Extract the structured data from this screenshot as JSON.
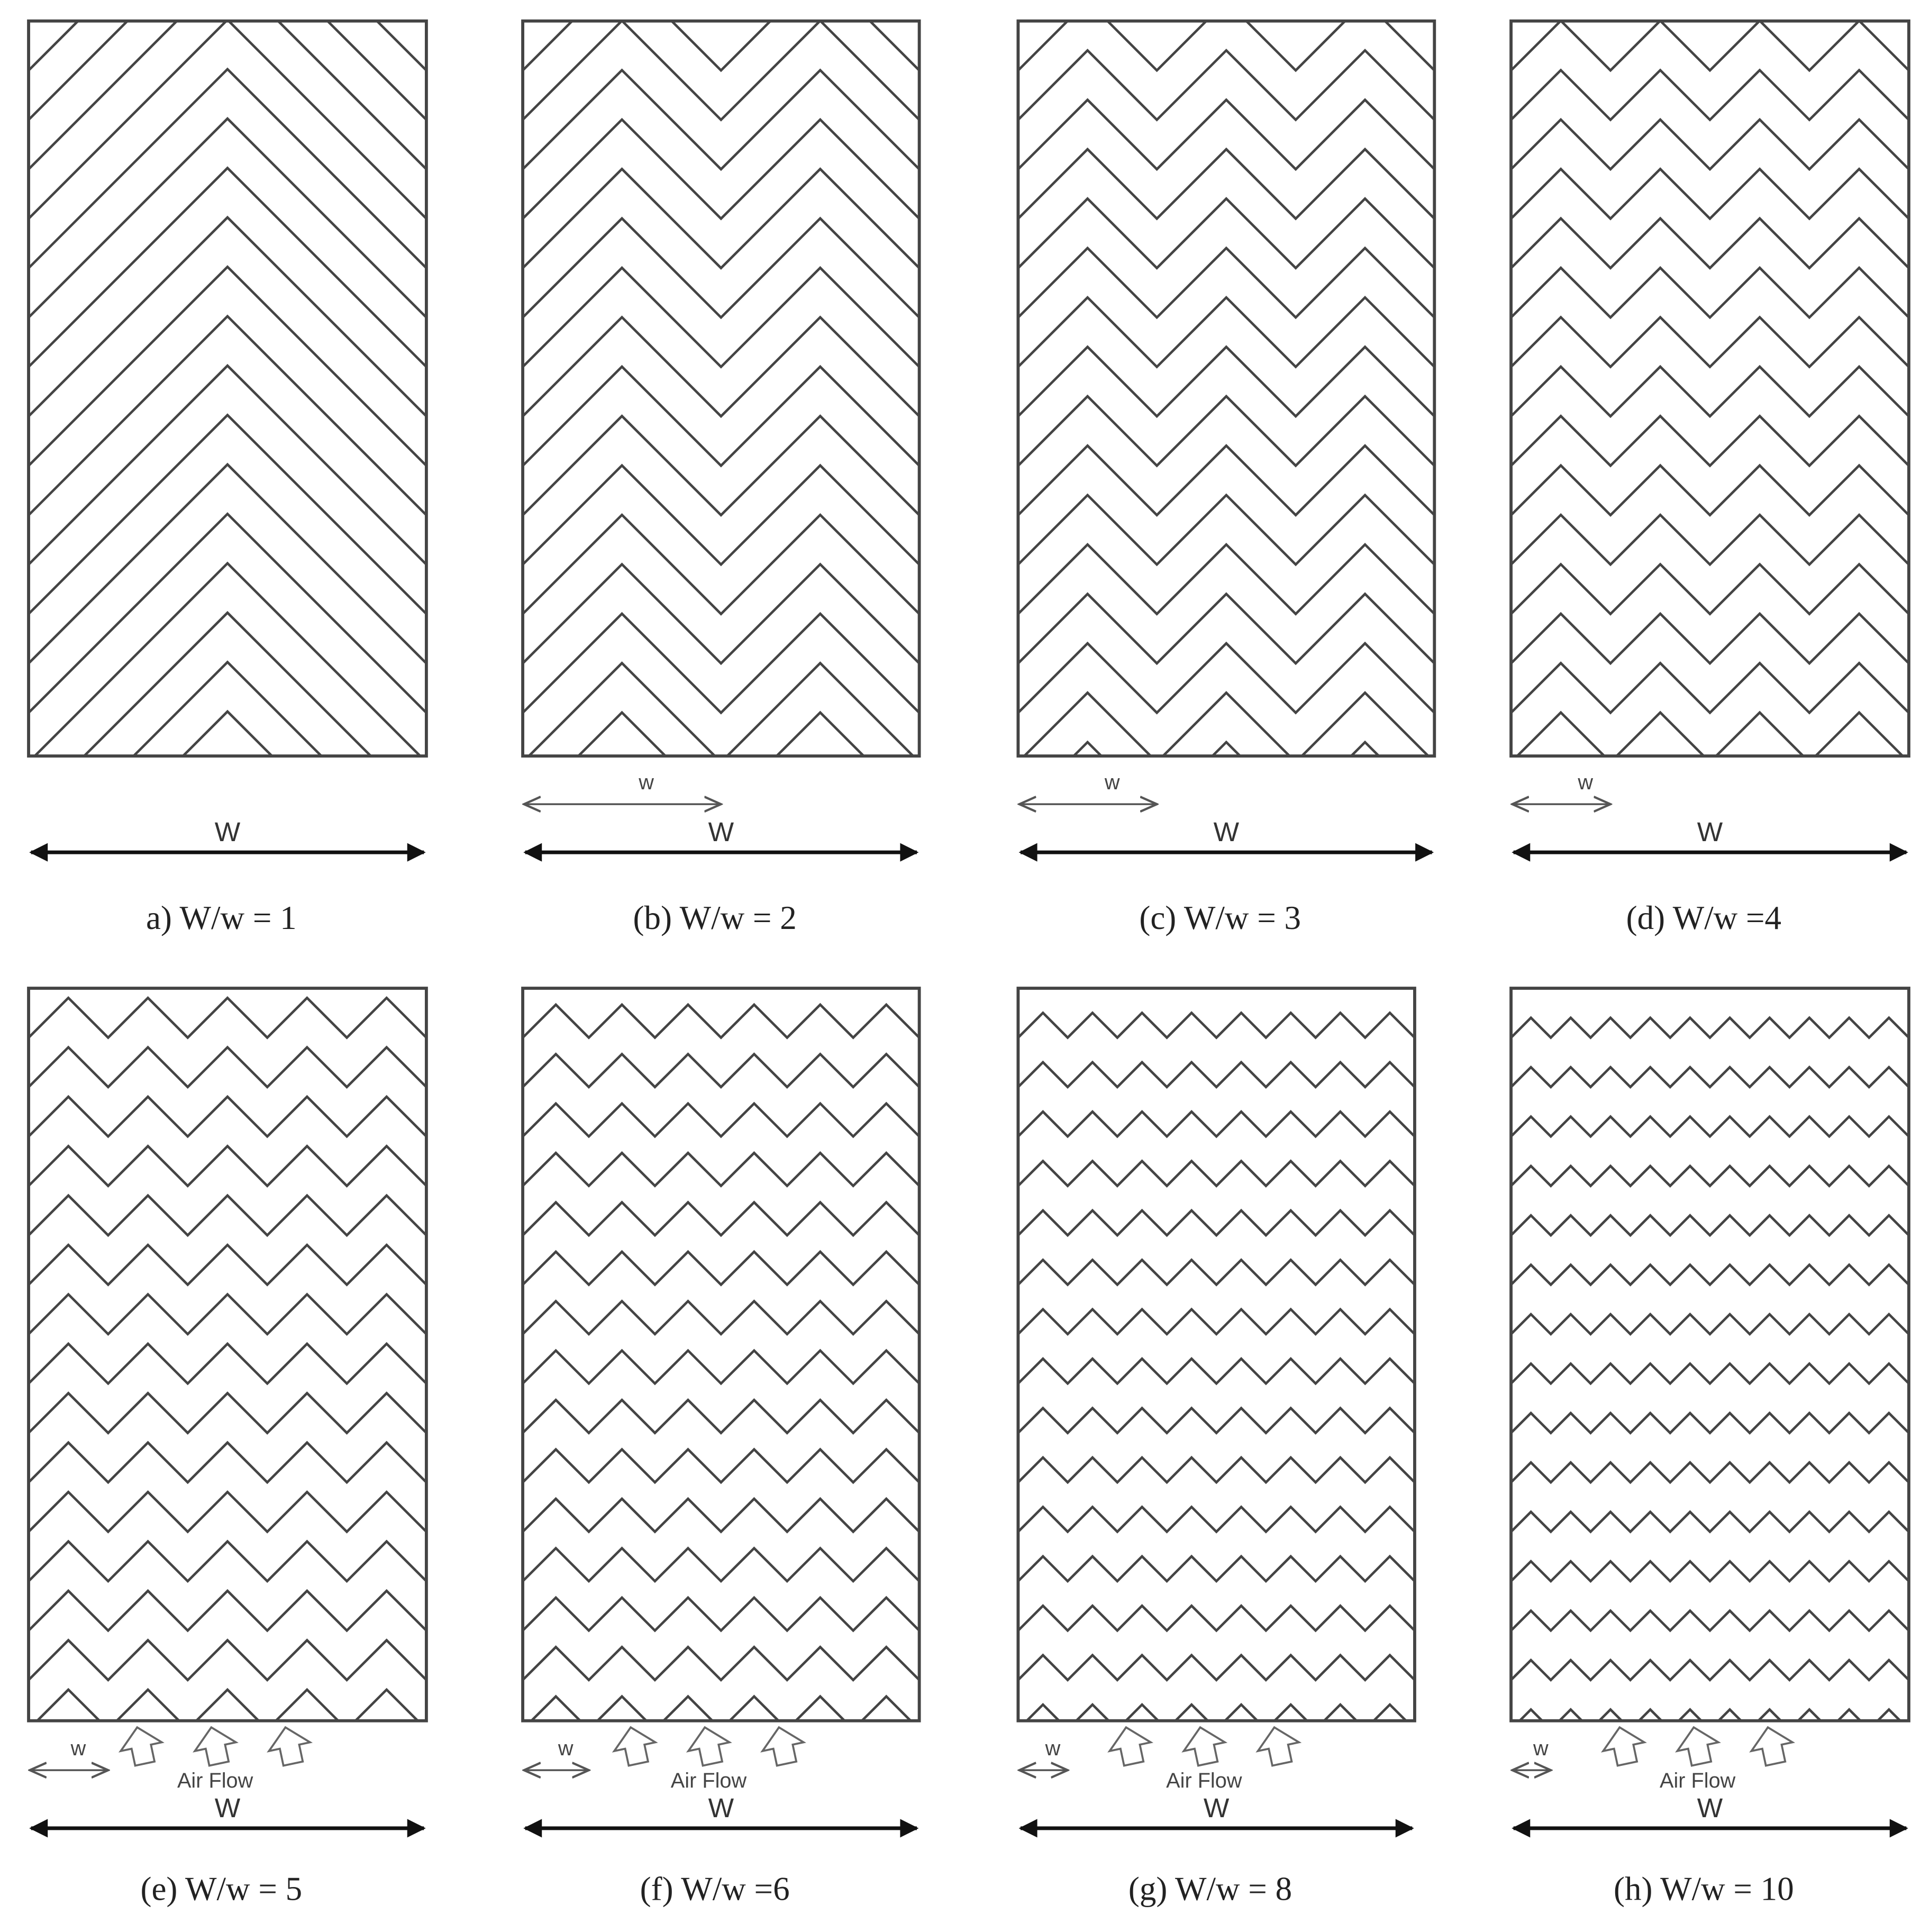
{
  "panels": [
    {
      "caption": "a) W/w = 1",
      "width_label": "W"
    },
    {
      "caption": "(b) W/w = 2",
      "width_label": "W",
      "pitch_label": "w"
    },
    {
      "caption": "(c) W/w = 3",
      "width_label": "W",
      "pitch_label": "w"
    },
    {
      "caption": "(d) W/w =4",
      "width_label": "W",
      "pitch_label": "w"
    },
    {
      "caption": "(e) W/w = 5",
      "width_label": "W",
      "pitch_label": "w",
      "flow_label": "Air Flow"
    },
    {
      "caption": "(f) W/w =6",
      "width_label": "W",
      "pitch_label": "w",
      "flow_label": "Air Flow"
    },
    {
      "caption": "(g) W/w = 8",
      "width_label": "W",
      "pitch_label": "w",
      "flow_label": "Air Flow"
    },
    {
      "caption": "(h) W/w = 10",
      "width_label": "W",
      "pitch_label": "w",
      "flow_label": "Air Flow"
    }
  ]
}
